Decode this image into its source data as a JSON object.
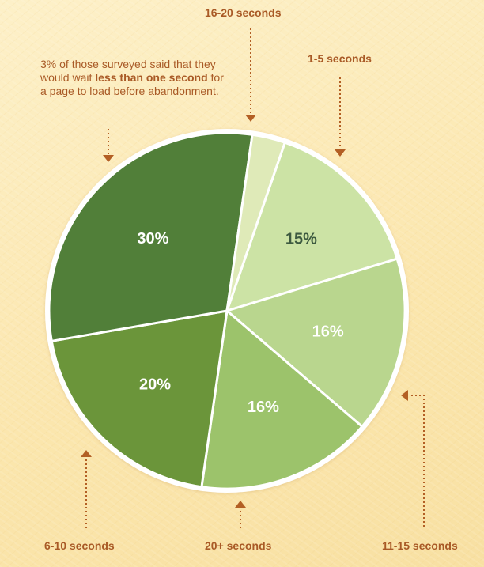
{
  "chart_data": {
    "type": "pie",
    "slices": [
      {
        "label": "16-20 seconds",
        "value": 15,
        "text": "15%",
        "color": "#cce3a5",
        "text_color": "#3d5a40"
      },
      {
        "label": "1-5 seconds",
        "value": 16,
        "text": "16%",
        "color": "#b9d68e",
        "text_color": "#ffffff"
      },
      {
        "label": "11-15 seconds",
        "value": 16,
        "text": "16%",
        "color": "#9cc36b",
        "text_color": "#ffffff"
      },
      {
        "label": "20+ seconds",
        "value": 20,
        "text": "20%",
        "color": "#6b953a",
        "text_color": "#ffffff"
      },
      {
        "label": "6-10 seconds",
        "value": 30,
        "text": "30%",
        "color": "#517f39",
        "text_color": "#ffffff"
      },
      {
        "label": "less than one second",
        "value": 3,
        "text": "",
        "color": "#dfeab8",
        "text_color": "#ffffff"
      }
    ],
    "labels": {
      "l16_20": "16-20 seconds",
      "l1_5": "1-5 seconds",
      "l11_15": "11-15 seconds",
      "l20plus": "20+ seconds",
      "l6_10": "6-10 seconds"
    },
    "annotation": {
      "pre": "3% of those surveyed said that they would wait ",
      "bold": "less than one second",
      "post": " for a page to load before abandonment."
    },
    "colors": {
      "label_text": "#a95a26",
      "arrow": "#b35f24",
      "pie_border": "#ffffff"
    }
  }
}
